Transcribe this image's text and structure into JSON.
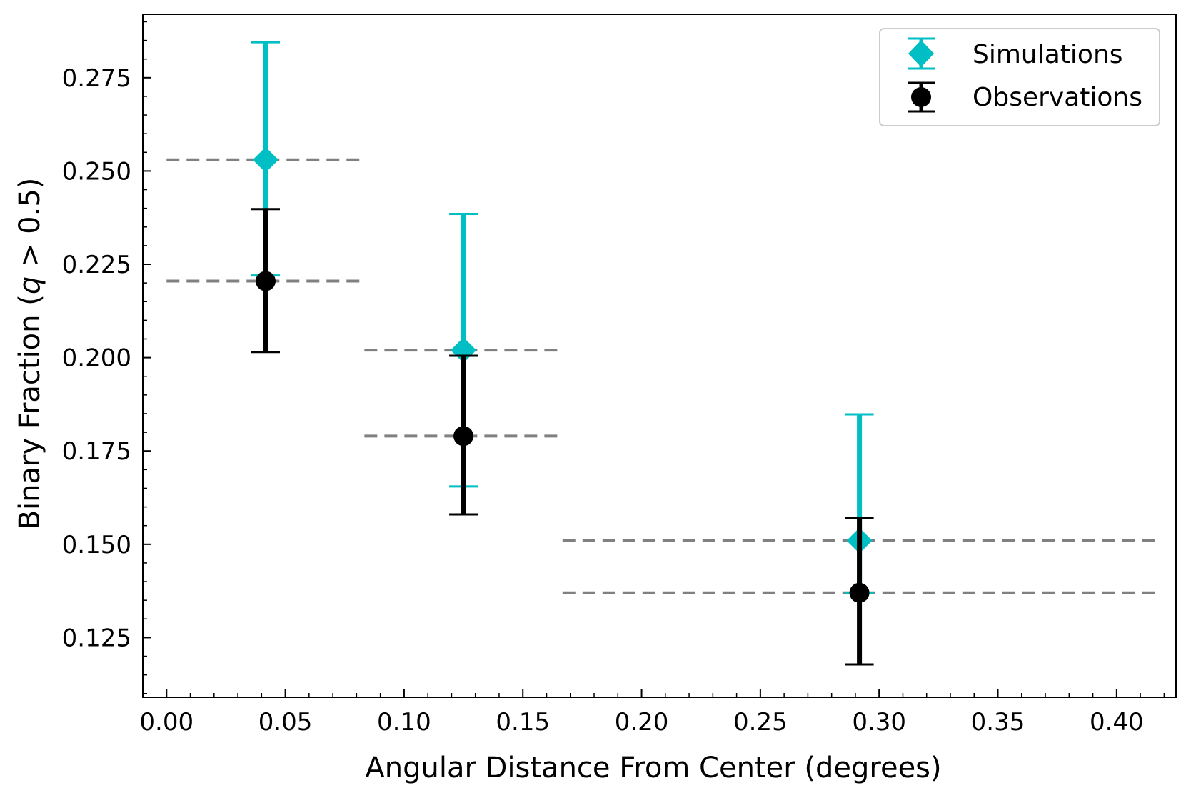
{
  "chart_data": {
    "type": "scatter",
    "xlabel": "Angular Distance From Center (degrees)",
    "ylabel_prefix": "Binary Fraction (",
    "ylabel_var": "q",
    "ylabel_suffix": " > 0.5)",
    "xlim": [
      -0.01,
      0.425
    ],
    "ylim": [
      0.109,
      0.292
    ],
    "x_ticks": [
      0.0,
      0.05,
      0.1,
      0.15,
      0.2,
      0.25,
      0.3,
      0.35,
      0.4
    ],
    "x_tick_labels": [
      "0.00",
      "0.05",
      "0.10",
      "0.15",
      "0.20",
      "0.25",
      "0.30",
      "0.35",
      "0.40"
    ],
    "y_ticks": [
      0.125,
      0.15,
      0.175,
      0.2,
      0.225,
      0.25,
      0.275
    ],
    "y_tick_labels": [
      "0.125",
      "0.150",
      "0.175",
      "0.200",
      "0.225",
      "0.250",
      "0.275"
    ],
    "bin_edges": [
      [
        0.0,
        0.0833
      ],
      [
        0.0833,
        0.1667
      ],
      [
        0.1667,
        0.4167
      ]
    ],
    "series": [
      {
        "name": "Simulations",
        "marker": "diamond",
        "color": "#00bfc4",
        "x": [
          0.0417,
          0.125,
          0.2917
        ],
        "y": [
          0.253,
          0.202,
          0.151
        ],
        "y_err_low": [
          0.222,
          0.1655,
          0.137
        ],
        "y_err_high": [
          0.2845,
          0.2385,
          0.1848
        ]
      },
      {
        "name": "Observations",
        "marker": "circle",
        "color": "#000000",
        "x": [
          0.0417,
          0.125,
          0.2917
        ],
        "y": [
          0.2205,
          0.179,
          0.137
        ],
        "y_err_low": [
          0.2015,
          0.158,
          0.1178
        ],
        "y_err_high": [
          0.2398,
          0.2005,
          0.157
        ]
      }
    ],
    "dashed_line_color": "#808080",
    "legend_position": "top-right"
  }
}
